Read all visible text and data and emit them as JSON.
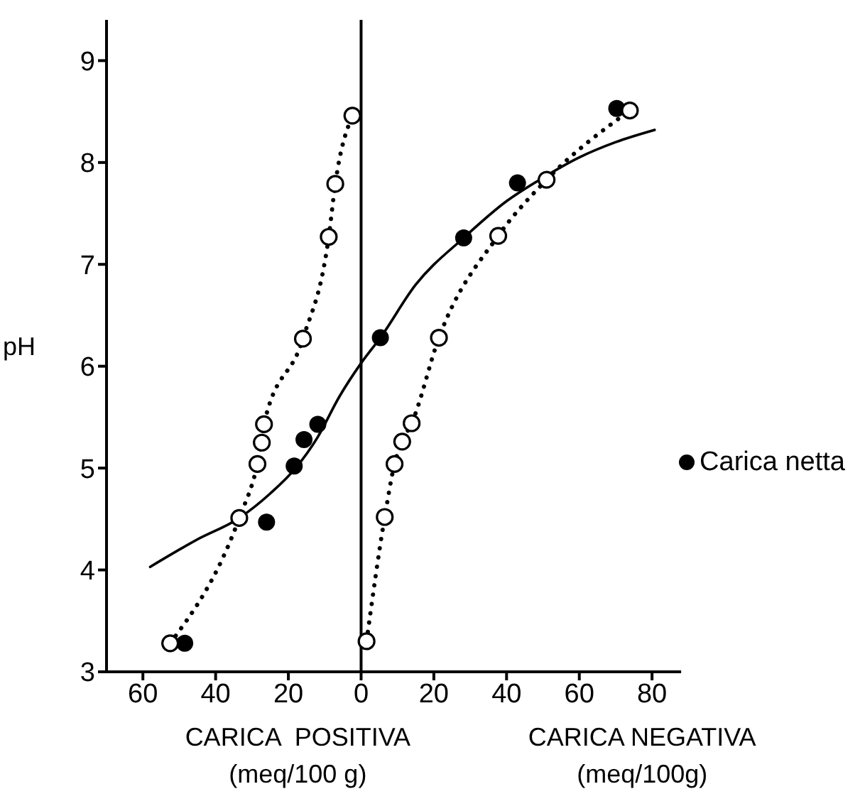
{
  "chart_data": {
    "type": "scatter",
    "ylabel": "pH",
    "annotations": [
      "CARICA  POSITIVA\n(meq/100 g)",
      "CARICA NEGATIVA\n(meq/100g)"
    ],
    "xlim": [
      -70,
      88
    ],
    "ylim": [
      3,
      9.4
    ],
    "xticks": [
      {
        "value": -60,
        "label": "60"
      },
      {
        "value": -40,
        "label": "40"
      },
      {
        "value": -20,
        "label": "20"
      },
      0,
      20,
      40,
      60,
      80
    ],
    "yticks": [
      3,
      4,
      5,
      6,
      7,
      8,
      9
    ],
    "ref_lines": [
      {
        "axis": "x",
        "value": 0,
        "color": "#000000"
      }
    ],
    "legend": "right",
    "grid": false,
    "series": [
      {
        "type": "line",
        "color": "#000000",
        "line_style": "solid",
        "marker": "none",
        "x": [
          -58,
          -45,
          -33.5,
          -25,
          -18,
          -12,
          -6,
          0,
          5.3,
          15,
          28.2,
          40,
          50,
          60,
          70,
          80.7
        ],
        "values": [
          4.03,
          4.3,
          4.51,
          4.75,
          5.0,
          5.3,
          5.7,
          6.03,
          6.28,
          6.8,
          7.26,
          7.62,
          7.85,
          8.05,
          8.2,
          8.32
        ]
      },
      {
        "type": "line",
        "color": "#000000",
        "line_style": "dotted",
        "marker": "circle",
        "x": [
          -52.5,
          -33.5,
          -28.5,
          -27.3,
          -26.7,
          -16,
          -8.9,
          -7.1,
          -2.4
        ],
        "values": [
          3.28,
          4.51,
          5.04,
          5.25,
          5.43,
          6.27,
          7.27,
          7.79,
          8.46
        ]
      },
      {
        "type": "line",
        "color": "#000000",
        "line_style": "dotted",
        "marker": "circle",
        "x": [
          1.5,
          6.5,
          9.2,
          11.3,
          13.9,
          21.4,
          37.7,
          51,
          73.9
        ],
        "values": [
          3.3,
          4.52,
          5.04,
          5.26,
          5.44,
          6.28,
          7.28,
          7.83,
          8.51
        ]
      },
      {
        "name": "Carica netta",
        "color": "#000000",
        "marker": "circle",
        "x": [
          -48.5,
          -26,
          -18.4,
          -15.7,
          -11.9,
          5.3,
          28.2,
          43,
          70.3
        ],
        "values": [
          3.28,
          4.47,
          5.02,
          5.28,
          5.43,
          6.28,
          7.26,
          7.8,
          8.53
        ]
      }
    ]
  }
}
